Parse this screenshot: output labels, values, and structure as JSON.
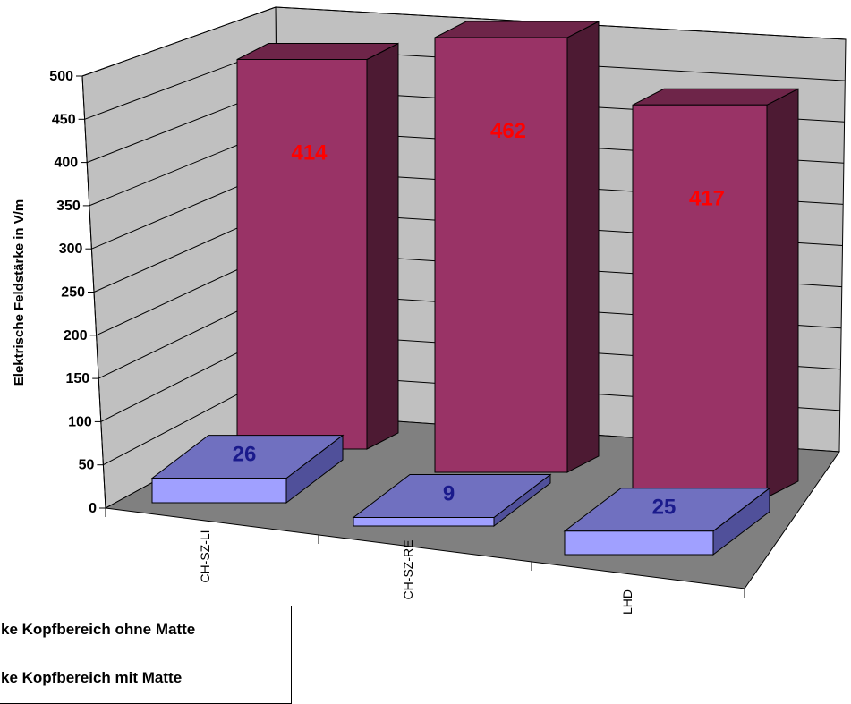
{
  "chart_data": {
    "type": "bar",
    "categories": [
      "CH-SZ-LI",
      "CH-SZ-RE",
      "LHD"
    ],
    "series": [
      {
        "name": "ke Kopfbereich mit Matte",
        "values": [
          26,
          9,
          25
        ],
        "color": "#7070C0",
        "label_color": "#1A1A8C"
      },
      {
        "name": "ke Kopfbereich ohne Matte",
        "values": [
          414,
          462,
          417
        ],
        "color": "#993366",
        "label_color": "#FF0000"
      }
    ],
    "ylabel": "Elektrische Feldstärke in V/m",
    "xlabel": "",
    "ylim": [
      0,
      500
    ],
    "yticks": [
      0,
      50,
      100,
      150,
      200,
      250,
      300,
      350,
      400,
      450,
      500
    ],
    "grid": true,
    "legend": "bottom-left",
    "view": "3d-perspective"
  }
}
